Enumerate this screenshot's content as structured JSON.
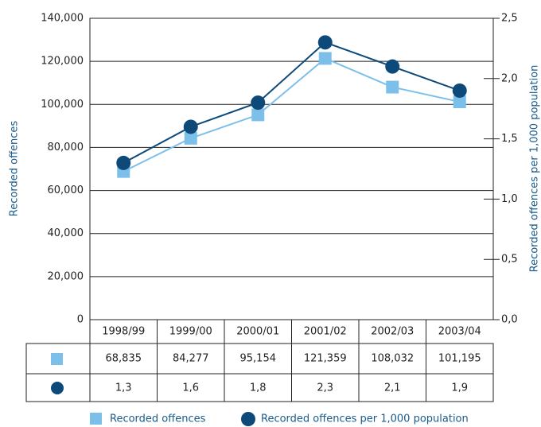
{
  "chart_data": {
    "type": "line",
    "categories": [
      "1998/99",
      "1999/00",
      "2000/01",
      "2001/02",
      "2002/03",
      "2003/04"
    ],
    "series": [
      {
        "name": "Recorded offences",
        "color": "#7cc0ea",
        "marker": "square",
        "values": [
          68835,
          84277,
          95154,
          121359,
          108032,
          101195
        ],
        "value_labels": [
          "68,835",
          "84,277",
          "95,154",
          "121,359",
          "108,032",
          "101,195"
        ]
      },
      {
        "name": "Recorded offences per 1,000 population",
        "color": "#0d4a7a",
        "marker": "circle",
        "axis": "y2",
        "values": [
          1.3,
          1.6,
          1.8,
          2.3,
          2.1,
          1.9
        ],
        "value_labels": [
          "1,3",
          "1,6",
          "1,8",
          "2,3",
          "2,1",
          "1,9"
        ]
      }
    ],
    "ylabel": "Recorded offences",
    "y2label": "Recorded offences per 1,000 population",
    "ylim": [
      0,
      140000
    ],
    "yticks": [
      0,
      {
        "value": 20000,
        "label": "20,000"
      },
      {
        "value": 40000,
        "label": "40,000"
      },
      {
        "value": 60000,
        "label": "60,000"
      },
      {
        "value": 80000,
        "label": "80,000"
      },
      {
        "value": 100000,
        "label": "100,000"
      },
      {
        "value": 120000,
        "label": "120,000"
      },
      {
        "value": 140000,
        "label": "140,000"
      }
    ],
    "y2lim": [
      0,
      2.5
    ],
    "y2ticks": [
      {
        "value": 0,
        "label": "0,0"
      },
      {
        "value": 0.5,
        "label": "0,5"
      },
      {
        "value": 1,
        "label": "1,0"
      },
      {
        "value": 1.5,
        "label": "1,5"
      },
      {
        "value": 2,
        "label": "2,0"
      },
      {
        "value": 2.5,
        "label": "2,5"
      }
    ],
    "grid": true
  }
}
